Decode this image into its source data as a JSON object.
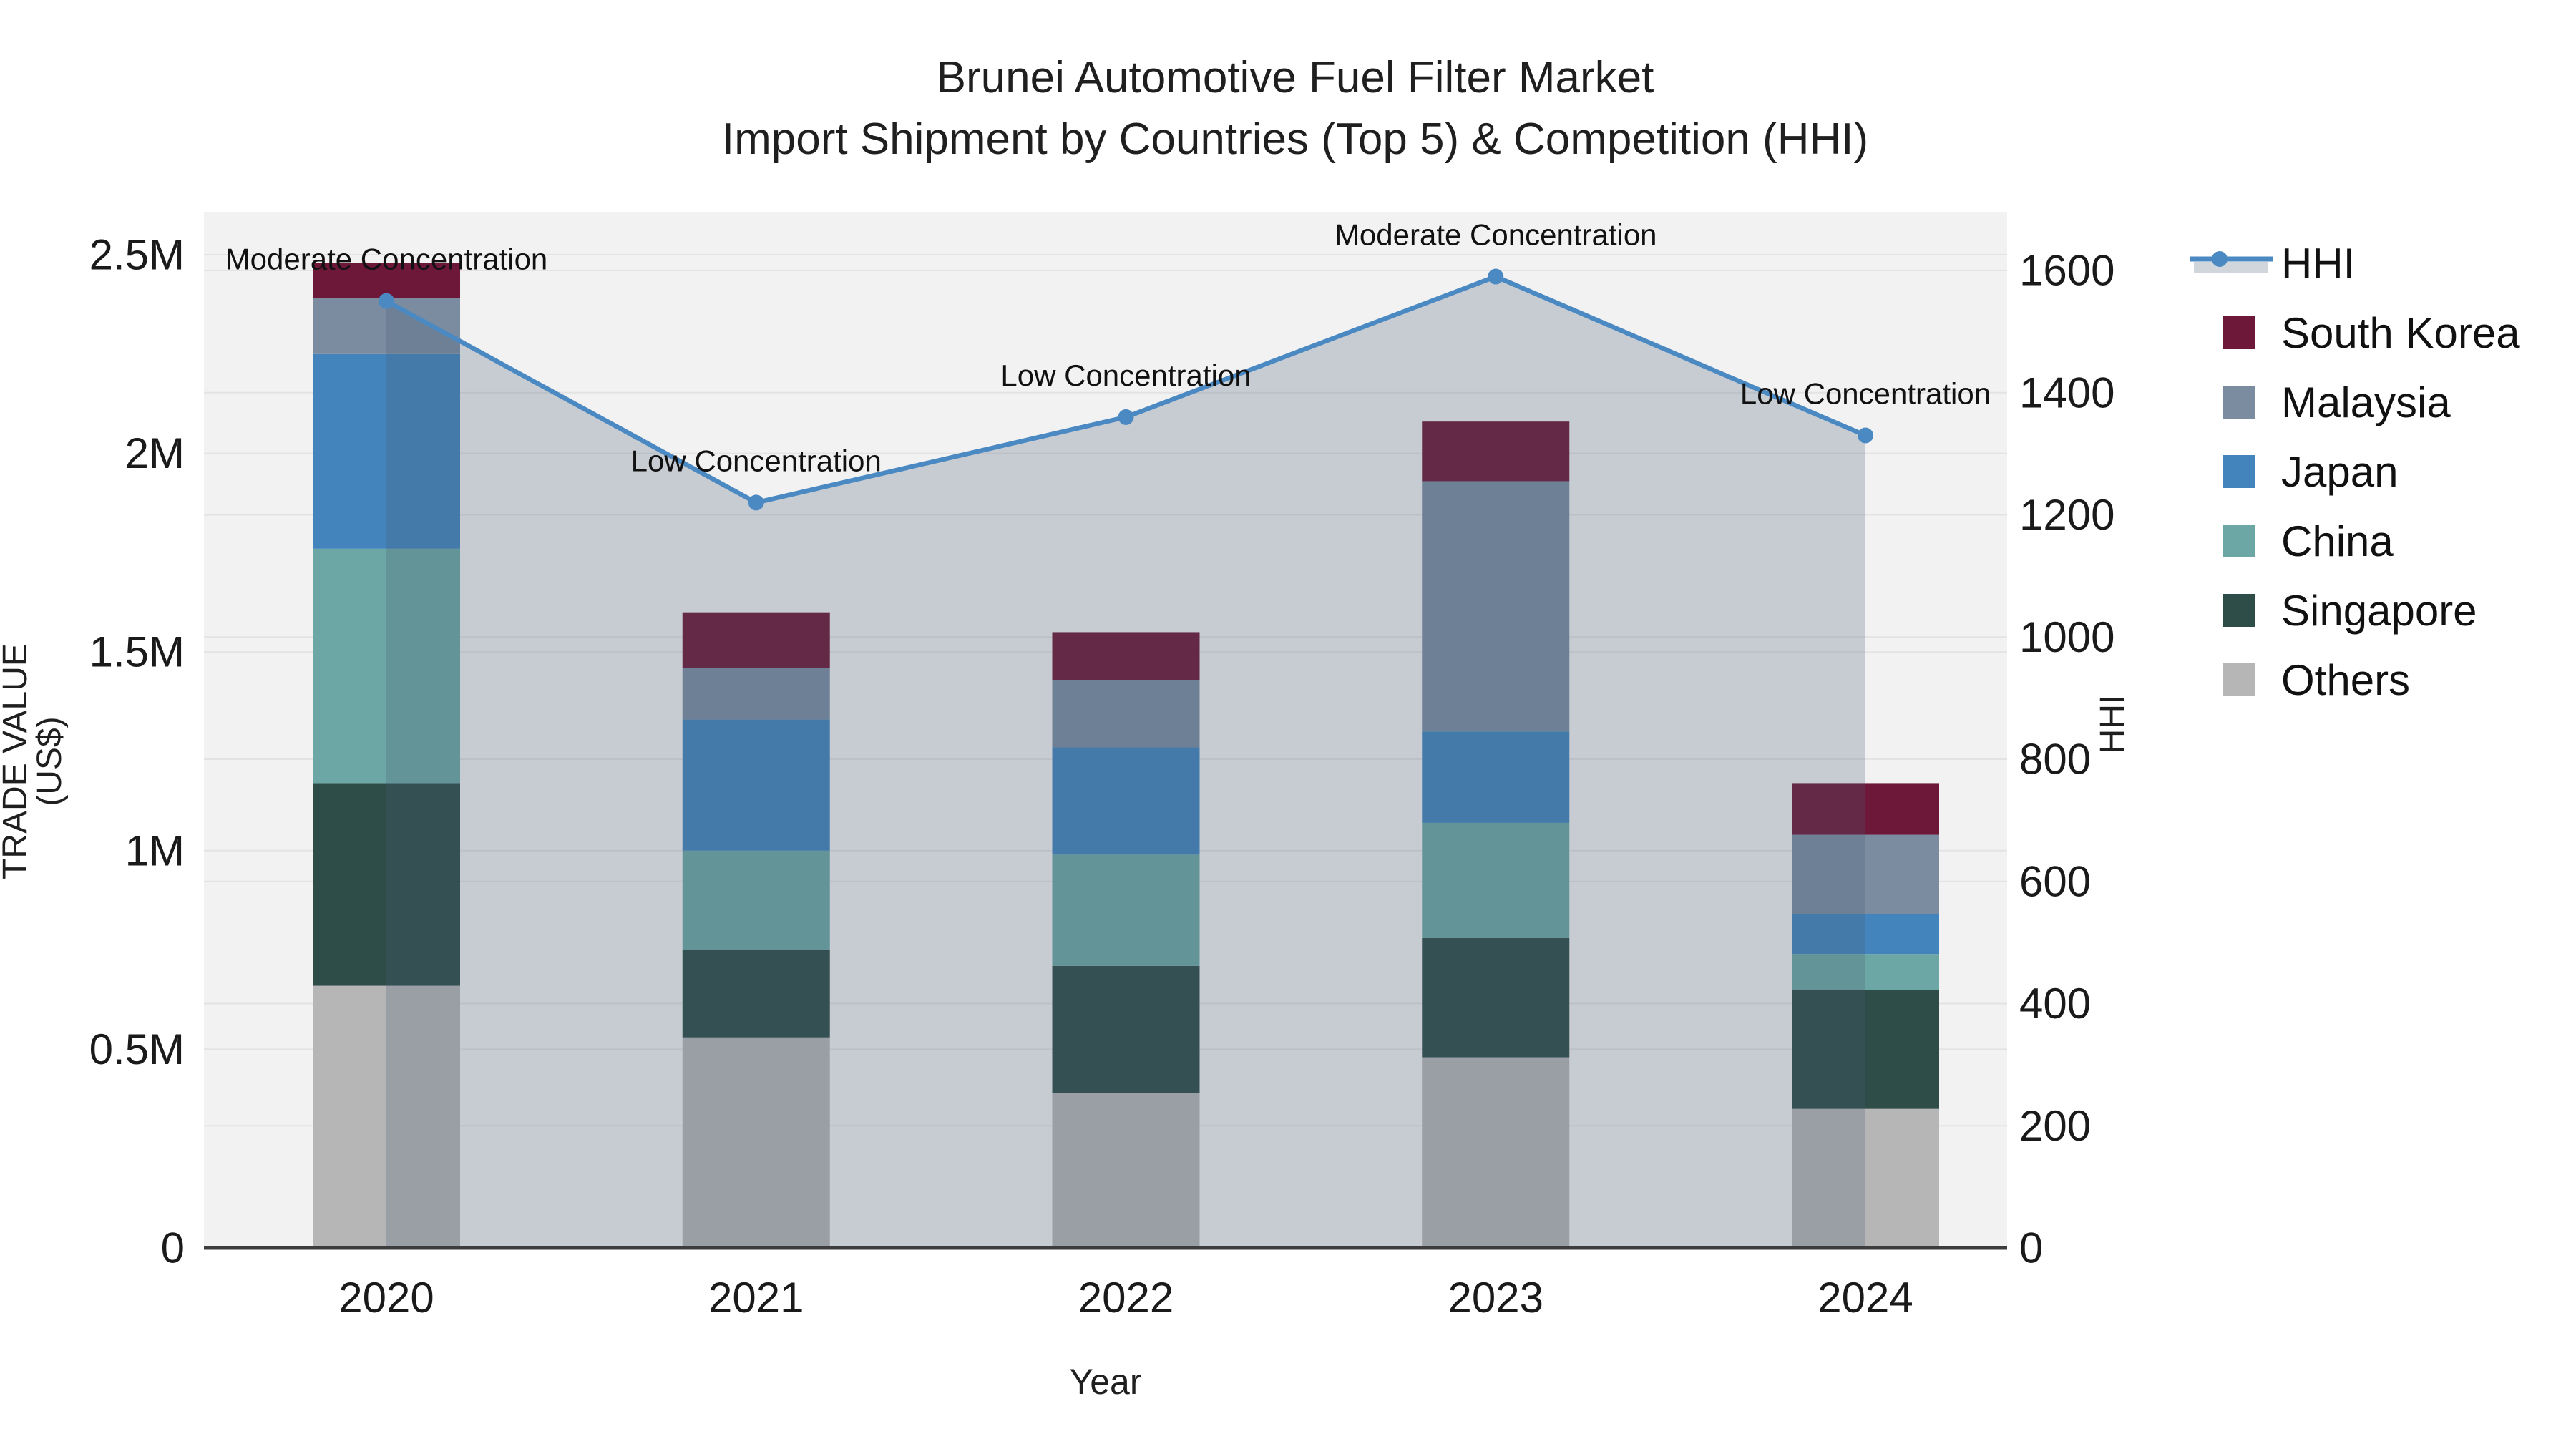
{
  "title": {
    "line1": "Brunei Automotive Fuel Filter Market",
    "line2": "Import Shipment by Countries (Top 5) & Competition (HHI)"
  },
  "chart_data": {
    "type": "combo-stacked-bar-line",
    "categories": [
      "2020",
      "2021",
      "2022",
      "2023",
      "2024"
    ],
    "xlabel": "Year",
    "ylabel_left": "TRADE VALUE (US$)",
    "ylabel_right": "HHI",
    "stack_series_bottom_to_top": [
      {
        "name": "Others",
        "color": "#b6b6b6",
        "values": [
          660000,
          530000,
          390000,
          480000,
          350000
        ]
      },
      {
        "name": "Singapore",
        "color": "#2e4d48",
        "values": [
          510000,
          220000,
          320000,
          300000,
          300000
        ]
      },
      {
        "name": "China",
        "color": "#6ca7a5",
        "values": [
          590000,
          250000,
          280000,
          290000,
          90000
        ]
      },
      {
        "name": "Japan",
        "color": "#4384bd",
        "values": [
          490000,
          330000,
          270000,
          230000,
          100000
        ]
      },
      {
        "name": "Malaysia",
        "color": "#7b8ca0",
        "values": [
          140000,
          130000,
          170000,
          630000,
          200000
        ]
      },
      {
        "name": "South Korea",
        "color": "#6d1839",
        "values": [
          90000,
          140000,
          120000,
          150000,
          130000
        ]
      }
    ],
    "line_series": {
      "name": "HHI",
      "color": "#4b89c2",
      "fill_color": "#465a73",
      "fill_opacity": 0.25,
      "values": [
        1550,
        1220,
        1360,
        1590,
        1330
      ]
    },
    "annotations": [
      {
        "year": "2020",
        "text": "Moderate Concentration"
      },
      {
        "year": "2021",
        "text": "Low Concentration"
      },
      {
        "year": "2022",
        "text": "Low Concentration"
      },
      {
        "year": "2023",
        "text": "Moderate Concentration"
      },
      {
        "year": "2024",
        "text": "Low Concentration"
      }
    ],
    "y_left": {
      "max": 2500000,
      "ticks": [
        {
          "v": 0,
          "label": "0"
        },
        {
          "v": 500000,
          "label": "0.5M"
        },
        {
          "v": 1000000,
          "label": "1M"
        },
        {
          "v": 1500000,
          "label": "1.5M"
        },
        {
          "v": 2000000,
          "label": "2M"
        },
        {
          "v": 2500000,
          "label": "2.5M"
        }
      ]
    },
    "y_right": {
      "max": 1600,
      "ticks": [
        {
          "v": 0,
          "label": "0"
        },
        {
          "v": 200,
          "label": "200"
        },
        {
          "v": 400,
          "label": "400"
        },
        {
          "v": 600,
          "label": "600"
        },
        {
          "v": 800,
          "label": "800"
        },
        {
          "v": 1000,
          "label": "1000"
        },
        {
          "v": 1200,
          "label": "1200"
        },
        {
          "v": 1400,
          "label": "1400"
        },
        {
          "v": 1600,
          "label": "1600"
        }
      ]
    },
    "legend_order": [
      "HHI",
      "South Korea",
      "Malaysia",
      "Japan",
      "China",
      "Singapore",
      "Others"
    ],
    "grid": true,
    "legend_position": "right"
  },
  "colors": {
    "plot_bg": "#f2f2f2",
    "grid": "#e3e3e3",
    "axis_line": "#3d3d3d",
    "tick_text": "#1a1a1a",
    "annotation_text": "#111111"
  }
}
